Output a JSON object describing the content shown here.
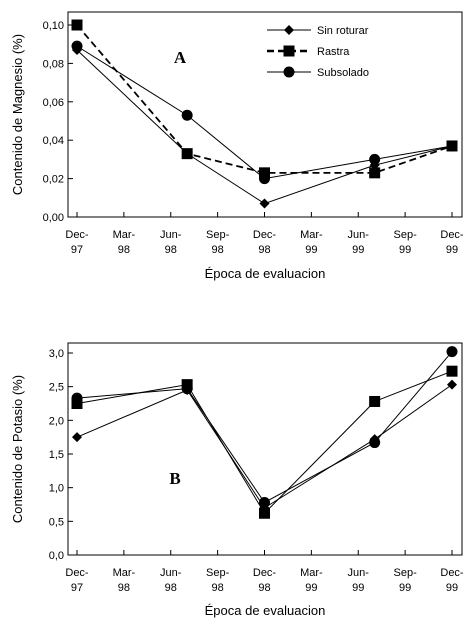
{
  "chart_data": [
    {
      "type": "line",
      "annotation": "A",
      "x_label": "Época de evaluacion",
      "y_label": "Contenido de Magnesio (%)",
      "xlim": [
        0,
        8
      ],
      "xticks": [
        {
          "value": 0,
          "label": "Dec-97"
        },
        {
          "value": 1,
          "label": "Mar-98"
        },
        {
          "value": 2,
          "label": "Jun-98"
        },
        {
          "value": 3,
          "label": "Sep-98"
        },
        {
          "value": 4,
          "label": "Dec-98"
        },
        {
          "value": 5,
          "label": "Mar-99"
        },
        {
          "value": 6,
          "label": "Jun-99"
        },
        {
          "value": 7,
          "label": "Sep-99"
        },
        {
          "value": 8,
          "label": "Dec-99"
        }
      ],
      "ylim": [
        0,
        0.1
      ],
      "yticks": [
        {
          "value": 0,
          "label": "0,00"
        },
        {
          "value": 0.02,
          "label": "0,02"
        },
        {
          "value": 0.04,
          "label": "0,04"
        },
        {
          "value": 0.06,
          "label": "0,06"
        },
        {
          "value": 0.08,
          "label": "0,08"
        },
        {
          "value": 0.1,
          "label": "0,10"
        }
      ],
      "legend": "top-right",
      "x": [
        0,
        2.35,
        4,
        6.35,
        8
      ],
      "series": [
        {
          "name": "Sin roturar",
          "color": "#000000",
          "marker": "diamond",
          "dashed": false,
          "values": [
            0.087,
            0.033,
            0.007,
            0.027,
            0.037
          ]
        },
        {
          "name": "Rastra",
          "color": "#000000",
          "marker": "square",
          "dashed": true,
          "values": [
            0.1,
            0.033,
            0.023,
            0.023,
            0.037
          ]
        },
        {
          "name": "Subsolado",
          "color": "#000000",
          "marker": "circle",
          "dashed": false,
          "values": [
            0.089,
            0.053,
            0.02,
            0.03,
            0.037
          ]
        }
      ]
    },
    {
      "type": "line",
      "annotation": "B",
      "x_label": "Época de evaluacion",
      "y_label": "Contenido de Potasio (%)",
      "xlim": [
        0,
        8
      ],
      "xticks": [
        {
          "value": 0,
          "label": "Dec-97"
        },
        {
          "value": 1,
          "label": "Mar-98"
        },
        {
          "value": 2,
          "label": "Jun-98"
        },
        {
          "value": 3,
          "label": "Sep-98"
        },
        {
          "value": 4,
          "label": "Dec-98"
        },
        {
          "value": 5,
          "label": "Mar-99"
        },
        {
          "value": 6,
          "label": "Jun-99"
        },
        {
          "value": 7,
          "label": "Sep-99"
        },
        {
          "value": 8,
          "label": "Dec-99"
        }
      ],
      "ylim": [
        0,
        3
      ],
      "yticks": [
        {
          "value": 0,
          "label": "0,0"
        },
        {
          "value": 0.5,
          "label": "0,5"
        },
        {
          "value": 1,
          "label": "1,0"
        },
        {
          "value": 1.5,
          "label": "1,5"
        },
        {
          "value": 2,
          "label": "2,0"
        },
        {
          "value": 2.5,
          "label": "2,5"
        },
        {
          "value": 3,
          "label": "3,0"
        }
      ],
      "x": [
        0,
        2.35,
        4,
        6.35,
        8
      ],
      "series": [
        {
          "name": "Sin roturar",
          "color": "#000000",
          "marker": "diamond",
          "dashed": false,
          "values": [
            1.75,
            2.45,
            0.7,
            1.72,
            2.53
          ]
        },
        {
          "name": "Rastra",
          "color": "#000000",
          "marker": "square",
          "dashed": false,
          "values": [
            2.25,
            2.53,
            0.62,
            2.28,
            2.73
          ]
        },
        {
          "name": "Subsolado",
          "color": "#000000",
          "marker": "circle",
          "dashed": false,
          "values": [
            2.33,
            2.47,
            0.78,
            1.67,
            3.02
          ]
        }
      ]
    }
  ]
}
